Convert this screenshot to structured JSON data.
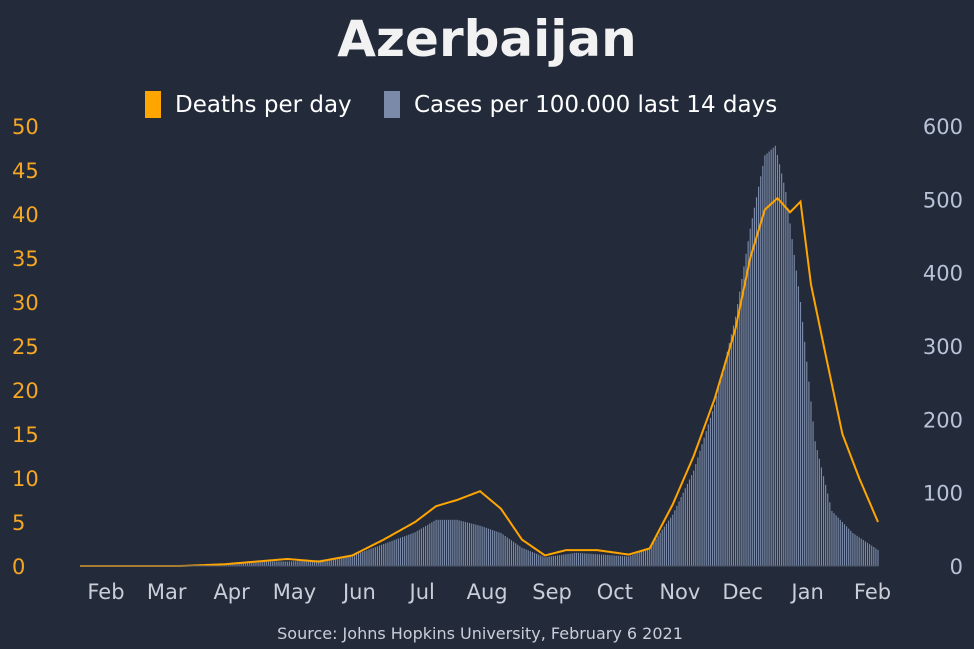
{
  "chart_data": {
    "type": "bar+line",
    "title": "Azerbaijan",
    "source": "Source: Johns Hopkins University, February 6 2021",
    "legend": [
      {
        "name": "Deaths per day",
        "color": "#ffa500"
      },
      {
        "name": "Cases per 100.000 last 14 days",
        "color": "#7a8aa8"
      }
    ],
    "legend_position": "top-center",
    "x_tick_labels": [
      "Feb",
      "Mar",
      "Apr",
      "May",
      "Jun",
      "Jul",
      "Aug",
      "Sep",
      "Oct",
      "Nov",
      "Dec",
      "Jan",
      "Feb"
    ],
    "x_tick_dates": [
      "2020-02-01",
      "2020-03-01",
      "2020-04-01",
      "2020-05-01",
      "2020-06-01",
      "2020-07-01",
      "2020-08-01",
      "2020-09-01",
      "2020-10-01",
      "2020-11-01",
      "2020-12-01",
      "2021-01-01",
      "2021-02-01"
    ],
    "x_range": [
      "2020-01-22",
      "2021-02-06"
    ],
    "y_left": {
      "label": "Deaths per day",
      "range": [
        0,
        50
      ],
      "ticks": [
        0,
        5,
        10,
        15,
        20,
        25,
        30,
        35,
        40,
        45,
        50
      ],
      "color": "#f5a623"
    },
    "y_right": {
      "label": "Cases per 100.000 last 14 days",
      "range": [
        0,
        600
      ],
      "ticks": [
        0,
        100,
        200,
        300,
        400,
        500,
        600
      ],
      "color": "#b8c3d8"
    },
    "grid": false,
    "series": [
      {
        "name": "Cases per 100.000 last 14 days",
        "kind": "bar",
        "axis": "right",
        "points": [
          [
            "2020-01-22",
            0
          ],
          [
            "2020-02-28",
            0
          ],
          [
            "2020-03-15",
            1
          ],
          [
            "2020-03-31",
            3
          ],
          [
            "2020-04-15",
            7
          ],
          [
            "2020-04-30",
            6
          ],
          [
            "2020-05-15",
            8
          ],
          [
            "2020-05-31",
            14
          ],
          [
            "2020-06-15",
            30
          ],
          [
            "2020-06-30",
            46
          ],
          [
            "2020-07-10",
            63
          ],
          [
            "2020-07-20",
            63
          ],
          [
            "2020-07-31",
            55
          ],
          [
            "2020-08-10",
            45
          ],
          [
            "2020-08-20",
            25
          ],
          [
            "2020-08-31",
            12
          ],
          [
            "2020-09-15",
            18
          ],
          [
            "2020-09-30",
            15
          ],
          [
            "2020-10-10",
            13
          ],
          [
            "2020-10-20",
            25
          ],
          [
            "2020-10-31",
            70
          ],
          [
            "2020-11-10",
            130
          ],
          [
            "2020-11-20",
            220
          ],
          [
            "2020-11-30",
            340
          ],
          [
            "2020-12-07",
            460
          ],
          [
            "2020-12-14",
            560
          ],
          [
            "2020-12-19",
            573
          ],
          [
            "2020-12-24",
            510
          ],
          [
            "2020-12-31",
            360
          ],
          [
            "2021-01-07",
            170
          ],
          [
            "2021-01-15",
            75
          ],
          [
            "2021-01-25",
            45
          ],
          [
            "2021-02-06",
            22
          ]
        ]
      },
      {
        "name": "Deaths per day",
        "kind": "line",
        "axis": "left",
        "points": [
          [
            "2020-01-22",
            0
          ],
          [
            "2020-03-10",
            0
          ],
          [
            "2020-03-31",
            0.2
          ],
          [
            "2020-04-15",
            0.5
          ],
          [
            "2020-04-30",
            0.8
          ],
          [
            "2020-05-15",
            0.5
          ],
          [
            "2020-05-31",
            1.2
          ],
          [
            "2020-06-15",
            3
          ],
          [
            "2020-06-30",
            5
          ],
          [
            "2020-07-10",
            6.8
          ],
          [
            "2020-07-20",
            7.5
          ],
          [
            "2020-07-31",
            8.5
          ],
          [
            "2020-08-10",
            6.5
          ],
          [
            "2020-08-20",
            3
          ],
          [
            "2020-08-31",
            1.2
          ],
          [
            "2020-09-10",
            1.8
          ],
          [
            "2020-09-25",
            1.8
          ],
          [
            "2020-10-10",
            1.3
          ],
          [
            "2020-10-20",
            2
          ],
          [
            "2020-10-31",
            7
          ],
          [
            "2020-11-10",
            12.5
          ],
          [
            "2020-11-20",
            19
          ],
          [
            "2020-11-30",
            27
          ],
          [
            "2020-12-07",
            35
          ],
          [
            "2020-12-14",
            40.5
          ],
          [
            "2020-12-20",
            41.8
          ],
          [
            "2020-12-26",
            40.2
          ],
          [
            "2020-12-31",
            41.4
          ],
          [
            "2021-01-05",
            32
          ],
          [
            "2021-01-12",
            24
          ],
          [
            "2021-01-20",
            15
          ],
          [
            "2021-01-28",
            10
          ],
          [
            "2021-02-06",
            5
          ]
        ]
      }
    ]
  }
}
